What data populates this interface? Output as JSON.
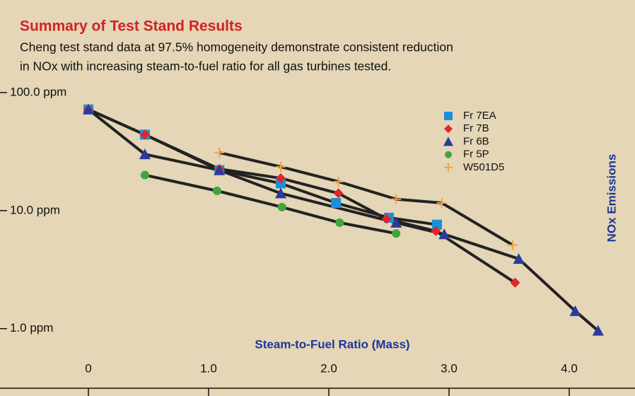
{
  "chart_data": {
    "type": "line",
    "title": "Summary of Test Stand Results",
    "subtitle": [
      "Cheng test stand data at 97.5% homogeneity demonstrate consistent reduction",
      "in NOx with increasing steam-to-fuel ratio for all gas turbines tested."
    ],
    "x_label": "Steam-to-Fuel Ratio (Mass)",
    "y_label": "NOx Emissions",
    "y_log": true,
    "xlim": [
      -0.7,
      4.4
    ],
    "xticks": [
      0,
      {
        "value": 1,
        "label": "1.0"
      },
      {
        "value": 2,
        "label": "2.0"
      },
      {
        "value": 3,
        "label": "3.0"
      },
      {
        "value": 4,
        "label": "4.0"
      }
    ],
    "ylim": [
      0.3,
      600
    ],
    "yticks": [
      {
        "value": 100,
        "label": "100.0 ppm"
      },
      {
        "value": 10,
        "label": "10.0 ppm"
      },
      {
        "value": 1,
        "label": "1.0 ppm"
      }
    ],
    "legend": "upper right",
    "series": [
      {
        "name": "Fr 7EA",
        "color": "#1b8fd8",
        "marker": "square",
        "x": [
          0,
          0.47,
          1.09,
          1.6,
          2.06,
          2.5,
          2.9
        ],
        "values": [
          72,
          44,
          22,
          17,
          11.6,
          8.7,
          7.6
        ]
      },
      {
        "name": "Fr 7B",
        "color": "#e2242b",
        "marker": "diamond",
        "x": [
          0,
          0.47,
          1.09,
          1.6,
          2.08,
          2.48,
          2.89,
          3.55
        ],
        "values": [
          72,
          44,
          22.5,
          18.8,
          14,
          8.5,
          6.7,
          2.45
        ]
      },
      {
        "name": "Fr 6B",
        "color": "#2b3a9b",
        "marker": "triangle",
        "x": [
          0,
          0.47,
          1.09,
          1.6,
          2.56,
          2.96,
          3.58,
          4.05,
          4.24
        ],
        "values": [
          72,
          30,
          22,
          14,
          7.9,
          6.3,
          3.9,
          1.41,
          0.96
        ]
      },
      {
        "name": "Fr 5P",
        "color": "#3fa63c",
        "marker": "circle",
        "x": [
          0.47,
          1.07,
          1.61,
          2.09,
          2.56
        ],
        "values": [
          20,
          14.7,
          10.7,
          7.9,
          6.4
        ]
      },
      {
        "name": "W501D5",
        "color": "#f0a444",
        "marker": "plus",
        "x": [
          1.09,
          1.6,
          2.08,
          2.56,
          2.94,
          3.53
        ],
        "values": [
          31,
          23.5,
          17.6,
          12.5,
          11.6,
          5.1
        ]
      }
    ]
  }
}
